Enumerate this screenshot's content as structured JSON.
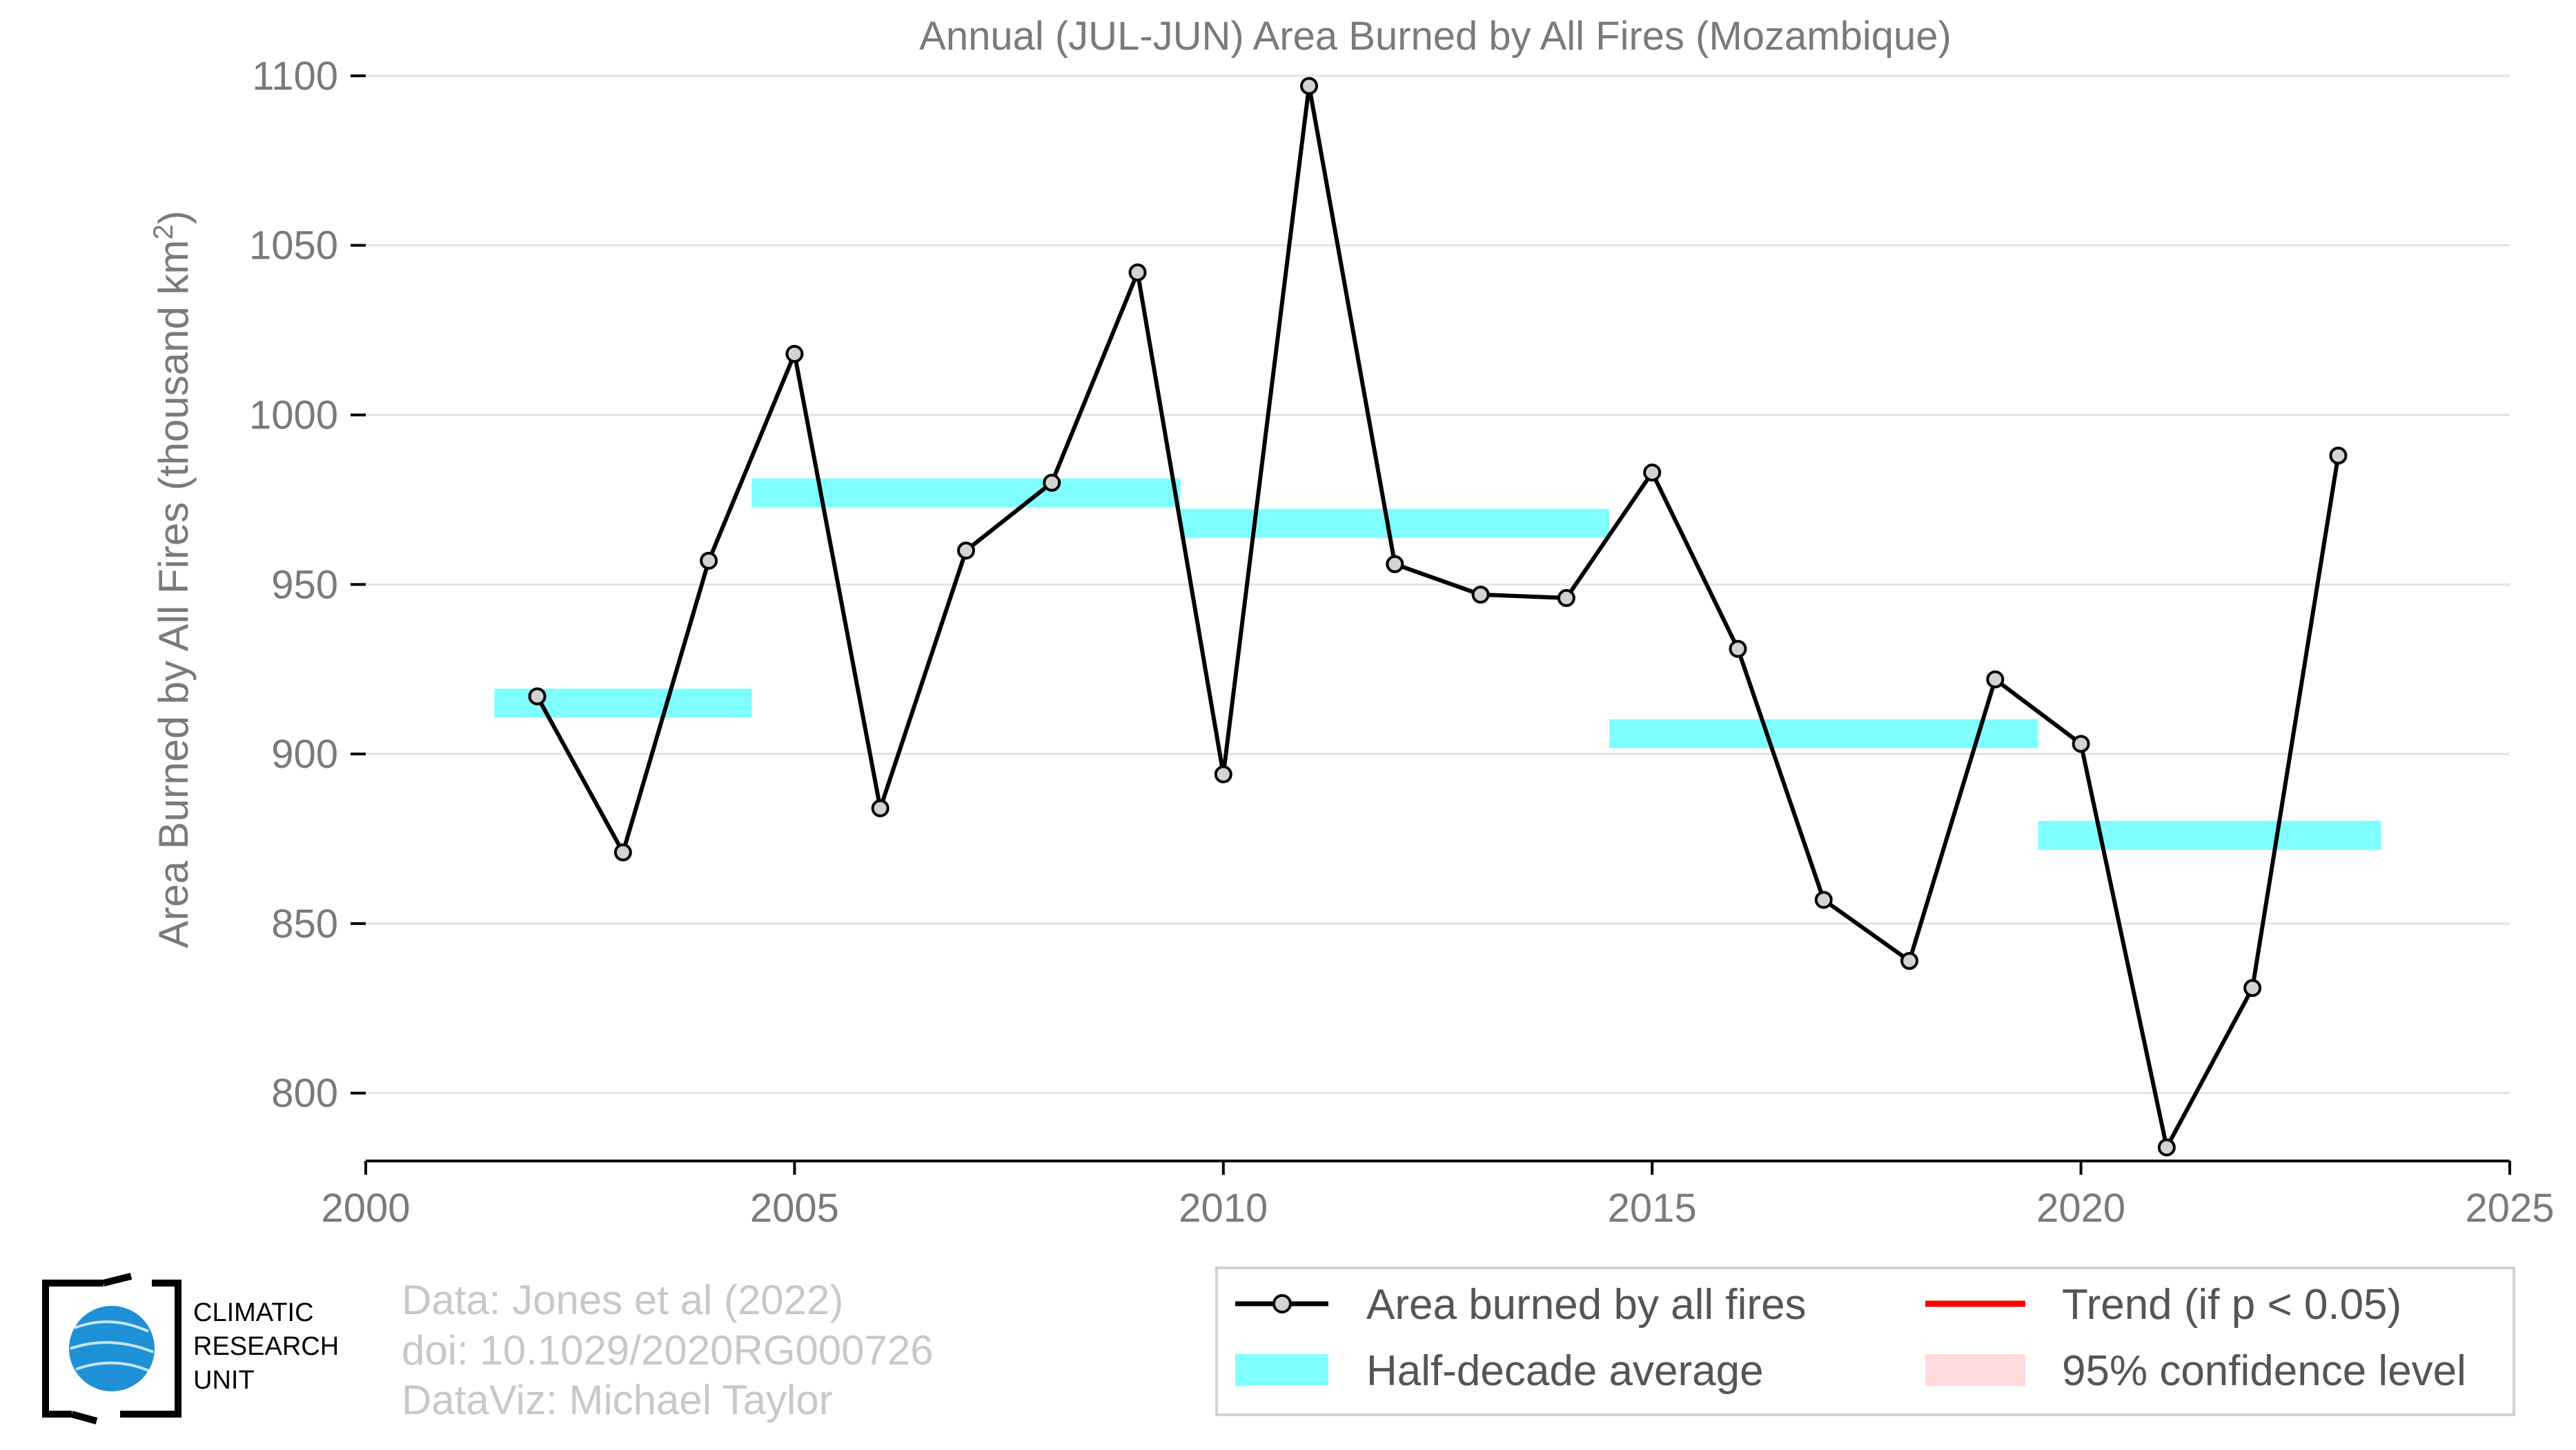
{
  "chart_data": {
    "type": "line",
    "title": "Annual (JUL-JUN) Area Burned by All Fires (Mozambique)",
    "xlabel": "",
    "ylabel": "Area Burned by All Fires (thousand km",
    "ylabel_superscript": "2",
    "ylabel_close": ")",
    "xlim": [
      2000,
      2025
    ],
    "ylim": [
      780,
      1102
    ],
    "xticks": [
      2000,
      2005,
      2010,
      2015,
      2020,
      2025
    ],
    "yticks": [
      800,
      850,
      900,
      950,
      1000,
      1050,
      1100
    ],
    "grid": true,
    "legend_position": "bottom-right",
    "series": [
      {
        "name": "Area burned by all fires",
        "color": "#000000",
        "marker_fill": "#d3d3d3",
        "x": [
          2002,
          2003,
          2004,
          2005,
          2006,
          2007,
          2008,
          2009,
          2010,
          2011,
          2012,
          2013,
          2014,
          2015,
          2016,
          2017,
          2018,
          2019,
          2020,
          2021,
          2022,
          2023
        ],
        "y": [
          917,
          871,
          957,
          1018,
          884,
          960,
          980,
          1042,
          894,
          1097,
          956,
          947,
          946,
          983,
          931,
          857,
          839,
          922,
          903,
          784,
          831,
          988
        ]
      }
    ],
    "half_decade_averages": {
      "name": "Half-decade average",
      "color": "#00ffff",
      "segments": [
        {
          "x_start": 2001.5,
          "x_end": 2004.5,
          "value": 915
        },
        {
          "x_start": 2004.5,
          "x_end": 2009.5,
          "value": 977
        },
        {
          "x_start": 2009.5,
          "x_end": 2014.5,
          "value": 968
        },
        {
          "x_start": 2014.5,
          "x_end": 2019.5,
          "value": 906
        },
        {
          "x_start": 2019.5,
          "x_end": 2023.5,
          "value": 876
        }
      ]
    },
    "legend": [
      {
        "label": "Area burned by all fires",
        "kind": "line-marker",
        "color": "#000000"
      },
      {
        "label": "Trend (if p < 0.05)",
        "kind": "line",
        "color": "#ff0000"
      },
      {
        "label": "Half-decade average",
        "kind": "band",
        "color": "#00ffff"
      },
      {
        "label": "95% confidence level",
        "kind": "band",
        "color": "#ffcccc"
      }
    ]
  },
  "credits": {
    "line1": "Data: Jones et al (2022)",
    "line2": "doi: 10.1029/2020RG000726",
    "line3": "DataViz: Michael Taylor"
  },
  "logo": {
    "line1": "CLIMATIC",
    "line2": "RESEARCH",
    "line3": "UNIT",
    "globe_color": "#1e90d6"
  }
}
